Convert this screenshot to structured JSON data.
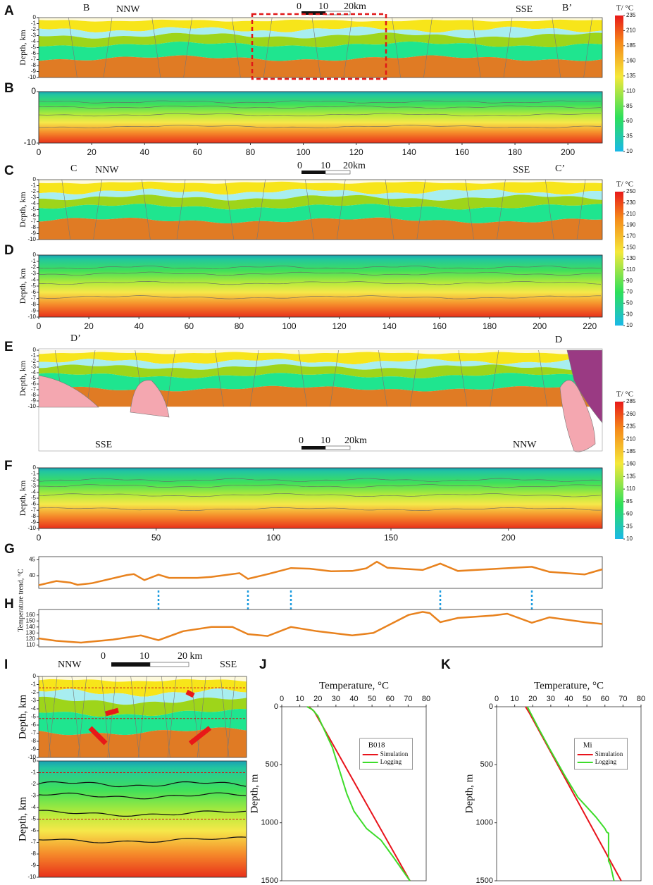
{
  "sections": [
    {
      "letter": "A",
      "labels": [
        "B",
        "NNW",
        "SSE",
        "B’"
      ],
      "scale": [
        "0",
        "10",
        "20km"
      ],
      "y_label": "Depth, km",
      "ylim": [
        -10,
        0
      ],
      "depth_ticks": [
        0,
        -1,
        -2,
        -3,
        -4,
        -5,
        -6,
        -7,
        -8,
        -9,
        -10
      ]
    },
    {
      "letter": "B",
      "ylim": [
        -10,
        0
      ],
      "depth_ticks": [
        0,
        -10
      ],
      "xlim": [
        0,
        213
      ],
      "xticks": [
        0,
        20,
        40,
        60,
        80,
        100,
        120,
        140,
        160,
        180,
        200
      ]
    },
    {
      "letter": "C",
      "labels": [
        "C",
        "NNW",
        "SSE",
        "C’"
      ],
      "scale": [
        "0",
        "10",
        "20km"
      ],
      "y_label": "Depth, km",
      "ylim": [
        -10,
        0
      ],
      "depth_ticks": [
        0,
        -1,
        -2,
        -3,
        -4,
        -5,
        -6,
        -7,
        -8,
        -9,
        -10
      ]
    },
    {
      "letter": "D",
      "y_label": "Depth, km",
      "ylim": [
        -10,
        0
      ],
      "depth_ticks": [
        0,
        -1,
        -2,
        -3,
        -4,
        -5,
        -6,
        -7,
        -8,
        -9,
        -10
      ],
      "xlim": [
        0,
        225
      ],
      "xticks": [
        0,
        20,
        40,
        60,
        80,
        100,
        120,
        140,
        160,
        180,
        200,
        220
      ]
    },
    {
      "letter": "E",
      "labels": [
        "D’",
        "D",
        "SSE",
        "NNW"
      ],
      "scale": [
        "0",
        "10",
        "20km"
      ],
      "y_label": "Depth, km",
      "ylim": [
        -10,
        0
      ],
      "depth_ticks": [
        0,
        -1,
        -2,
        -3,
        -4,
        -5,
        -6,
        -7,
        -8,
        -9,
        -10
      ]
    },
    {
      "letter": "F",
      "y_label": "Depth, km",
      "ylim": [
        -10,
        0
      ],
      "depth_ticks": [
        0,
        -1,
        -2,
        -3,
        -4,
        -5,
        -6,
        -7,
        -8,
        -9,
        -10
      ],
      "xlim": [
        0,
        240
      ],
      "xticks": [
        0,
        50,
        100,
        150,
        200
      ]
    },
    {
      "letter": "I",
      "labels": [
        "NNW",
        "SSE"
      ],
      "scale": [
        "0",
        "10",
        "20 km"
      ],
      "y_label": "Depth, km",
      "ylim": [
        -10,
        0
      ],
      "depth_ticks": [
        0,
        -1,
        -2,
        -3,
        -4,
        -5,
        -6,
        -7,
        -8,
        -9,
        -10
      ]
    },
    {
      "y_label": "Depth, km",
      "ylim": [
        -10,
        0
      ],
      "depth_ticks": [
        0,
        -1,
        -2,
        -3,
        -4,
        -5,
        -6,
        -7,
        -8,
        -9,
        -10
      ]
    }
  ],
  "colorbars": [
    {
      "title": "T/ °C",
      "ylim": [
        10,
        235
      ],
      "ticks": [
        235,
        210,
        185,
        160,
        135,
        110,
        85,
        60,
        35,
        10
      ]
    },
    {
      "title": "T/ °C",
      "ylim": [
        10,
        250
      ],
      "ticks": [
        250,
        230,
        210,
        190,
        170,
        150,
        130,
        110,
        90,
        70,
        50,
        30,
        10
      ]
    },
    {
      "title": "T/ °C",
      "ylim": [
        10,
        285
      ],
      "ticks": [
        285,
        260,
        235,
        210,
        185,
        160,
        135,
        110,
        85,
        60,
        35,
        10
      ]
    }
  ],
  "chart_data": [
    {
      "type": "line",
      "panel": "G",
      "y_label": "Temperature trend, °C",
      "color": "#e8821e",
      "xlim": [
        0,
        240
      ],
      "ylim": [
        36,
        46
      ],
      "yticks": [
        40,
        45
      ],
      "x": [
        0,
        7.5,
        13.5,
        16.5,
        22.5,
        37.5,
        40.5,
        45,
        51,
        55.5,
        67.5,
        73.5,
        85.5,
        89.1,
        97.5,
        107.4,
        115.5,
        124.5,
        133.5,
        139.5,
        144,
        148.5,
        163.5,
        171,
        178.5,
        193.5,
        210,
        217.5,
        232.5,
        240
      ],
      "values": [
        37,
        38.3,
        37.8,
        37.1,
        37.6,
        40.2,
        40.5,
        38.6,
        40.3,
        39.3,
        39.3,
        39.6,
        40.8,
        39,
        40.5,
        42.4,
        42.2,
        41.4,
        41.5,
        42.3,
        44.4,
        42.5,
        41.8,
        43.8,
        41.5,
        42.1,
        42.8,
        41.2,
        40.4,
        42
      ]
    },
    {
      "type": "line",
      "panel": "H",
      "color": "#e8821e",
      "xlim": [
        0,
        240
      ],
      "ylim": [
        107,
        169
      ],
      "yticks": [
        110,
        120,
        130,
        140,
        150,
        160
      ],
      "x": [
        0,
        7.5,
        18,
        31.5,
        43.5,
        51,
        61.5,
        73.5,
        82.5,
        89.1,
        97.5,
        107.4,
        118.5,
        133.5,
        142.5,
        157.5,
        163.5,
        166.5,
        171,
        178.5,
        193.5,
        199.5,
        210,
        217.5,
        232.5,
        240
      ],
      "values": [
        121,
        117,
        114,
        119,
        126,
        118,
        133,
        140,
        140,
        128,
        125,
        140,
        133,
        126,
        130,
        160,
        165,
        163,
        148,
        155,
        159,
        162,
        147,
        156,
        148,
        145
      ]
    },
    {
      "type": "line",
      "panel": "J",
      "x_label": "Temperature, °C",
      "y_label": "Depth, m",
      "legend_title": "B018",
      "xlim": [
        0,
        80
      ],
      "xticks": [
        0,
        10,
        20,
        30,
        40,
        50,
        60,
        70,
        80
      ],
      "ylim": [
        0,
        1500
      ],
      "yticks": [
        0,
        500,
        1000,
        1500
      ],
      "y_inverted": true,
      "series": [
        {
          "name": "Simulation",
          "color": "#e8141c",
          "x": [
            15,
            18,
            71
          ],
          "values": [
            0,
            40,
            1500
          ]
        },
        {
          "name": "Logging",
          "color": "#3ddc2a",
          "x": [
            14,
            17,
            20,
            28,
            33,
            36,
            40,
            47,
            55,
            62,
            71
          ],
          "values": [
            0,
            25,
            80,
            350,
            600,
            750,
            900,
            1050,
            1150,
            1300,
            1500
          ]
        }
      ]
    },
    {
      "type": "line",
      "panel": "K",
      "x_label": "Temperature, °C",
      "y_label": "Depth, m",
      "legend_title": "Mi",
      "xlim": [
        0,
        80
      ],
      "xticks": [
        0,
        10,
        20,
        30,
        40,
        50,
        60,
        70,
        80
      ],
      "ylim": [
        0,
        1500
      ],
      "yticks": [
        0,
        500,
        1000,
        1500
      ],
      "y_inverted": true,
      "series": [
        {
          "name": "Simulation",
          "color": "#e8141c",
          "x": [
            16,
            18,
            69
          ],
          "values": [
            0,
            50,
            1500
          ]
        },
        {
          "name": "Logging",
          "color": "#3ddc2a",
          "x": [
            17,
            19,
            23,
            30,
            38,
            45,
            55,
            60,
            61,
            62,
            62,
            63,
            65
          ],
          "values": [
            0,
            60,
            180,
            380,
            600,
            780,
            950,
            1050,
            1080,
            1090,
            1330,
            1360,
            1500
          ]
        }
      ]
    }
  ]
}
